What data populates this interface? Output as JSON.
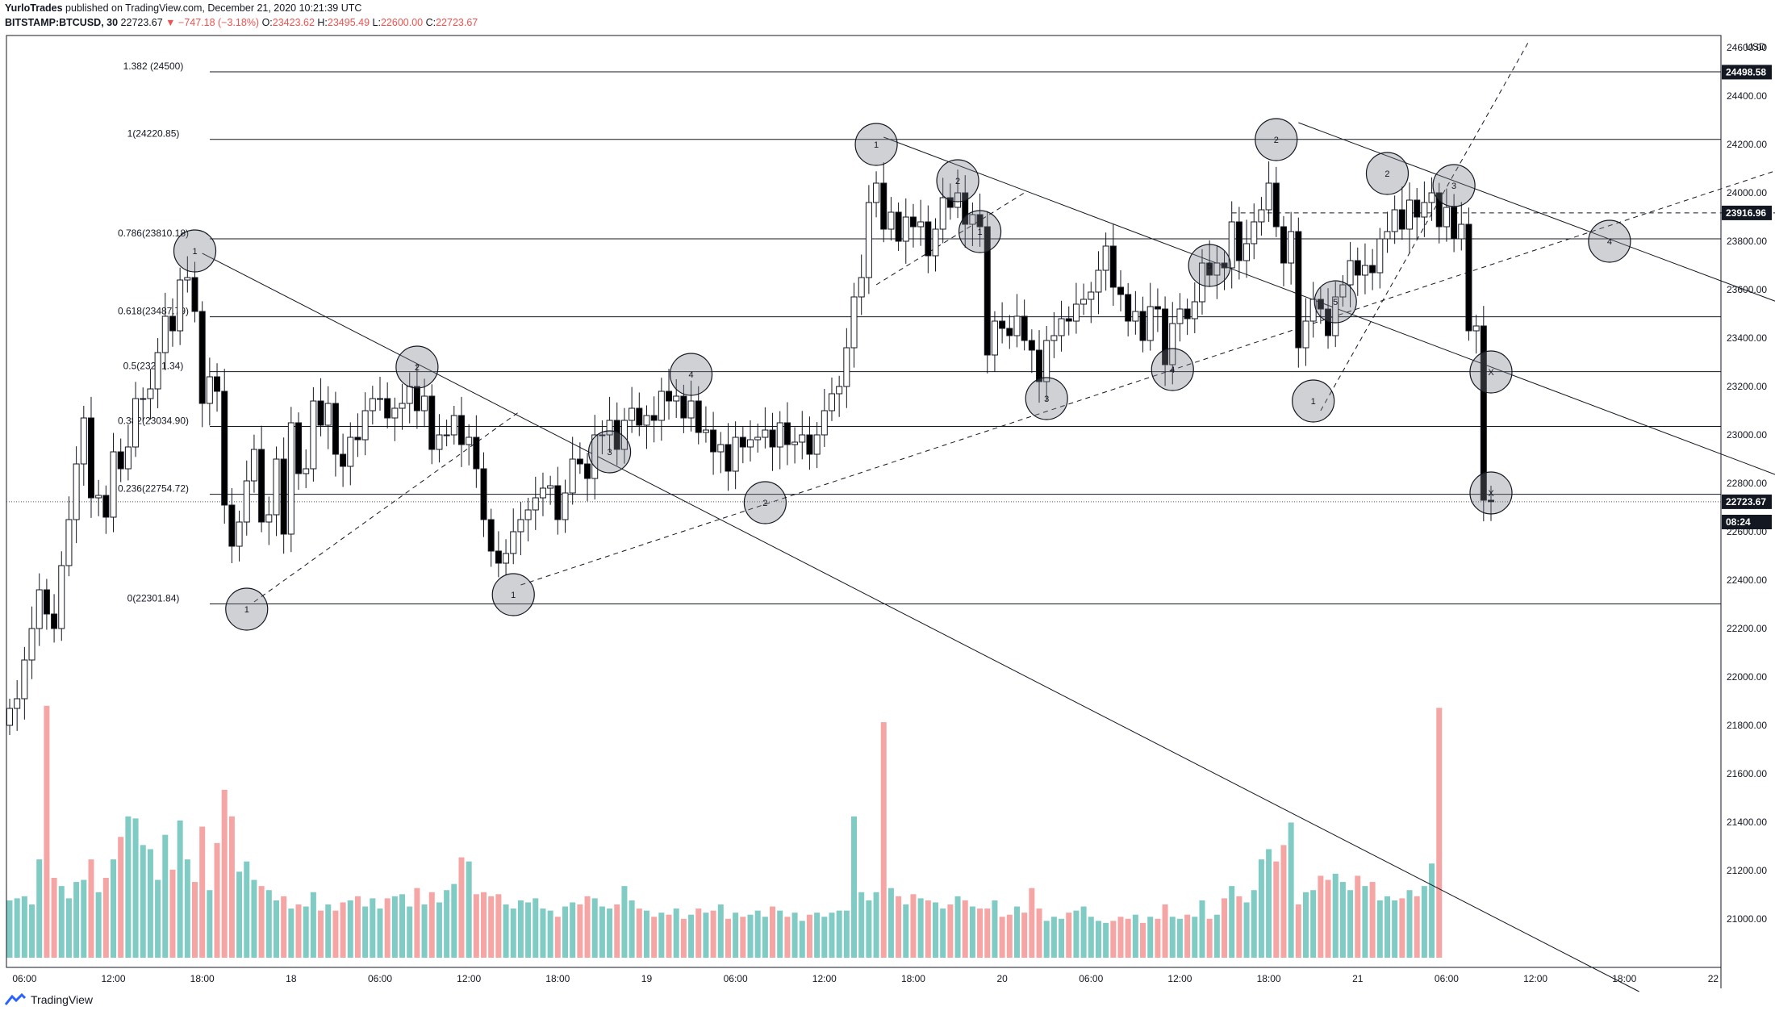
{
  "header": {
    "author": "YurloTrades",
    "published": "published on TradingView.com, December 21, 2020 10:21:39 UTC",
    "symbol": "BITSTAMP:BTCUSD, 30",
    "last": "22723.67",
    "change": "▼ −747.18 (−3.18%)",
    "o_label": "O:",
    "o": "23423.62",
    "h_label": "H:",
    "h": "23495.49",
    "l_label": "L:",
    "l": "22600.00",
    "c_label": "C:",
    "c": "22723.67"
  },
  "footer": {
    "brand": "TradingView"
  },
  "colors": {
    "up": "#26a69a",
    "down": "#000000",
    "vol_up": "#80cbc4",
    "vol_down": "#f6a5a5",
    "line": "#131722",
    "dots": "#e57373"
  },
  "chart_data": {
    "type": "candlestick",
    "currency": "USD",
    "y_axis": {
      "ticks": [
        24600,
        24400,
        24200,
        24000,
        23800,
        23600,
        23400,
        23200,
        23000,
        22800,
        22600,
        22400,
        22200,
        22000,
        21800,
        21600,
        21400,
        21200,
        21000
      ],
      "min": 20800,
      "max": 24650
    },
    "x_axis": {
      "ticks": [
        {
          "label": "06:00",
          "bar": 2
        },
        {
          "label": "12:00",
          "bar": 14
        },
        {
          "label": "18:00",
          "bar": 26
        },
        {
          "label": "18",
          "bar": 38
        },
        {
          "label": "06:00",
          "bar": 50
        },
        {
          "label": "12:00",
          "bar": 62
        },
        {
          "label": "18:00",
          "bar": 74
        },
        {
          "label": "19",
          "bar": 86
        },
        {
          "label": "06:00",
          "bar": 98
        },
        {
          "label": "12:00",
          "bar": 110
        },
        {
          "label": "18:00",
          "bar": 122
        },
        {
          "label": "20",
          "bar": 134
        },
        {
          "label": "06:00",
          "bar": 146
        },
        {
          "label": "12:00",
          "bar": 158
        },
        {
          "label": "18:00",
          "bar": 170
        },
        {
          "label": "21",
          "bar": 182
        },
        {
          "label": "06:00",
          "bar": 194
        },
        {
          "label": "12:00",
          "bar": 206
        },
        {
          "label": "18:00",
          "bar": 218
        },
        {
          "label": "22",
          "bar": 230
        },
        {
          "label": "06:00",
          "bar": 242
        },
        {
          "label": "12:00",
          "bar": 254
        },
        {
          "label": "18:00",
          "bar": 266
        }
      ],
      "bars_total": 275
    },
    "price_labels": [
      {
        "value": 24498.58,
        "text": "24498.58",
        "style": "dark"
      },
      {
        "value": 23916.96,
        "text": "23916.96",
        "style": "dark"
      },
      {
        "value": 22723.67,
        "text": "22723.67",
        "style": "dark"
      },
      {
        "value": 22640,
        "text": "08:24",
        "style": "dark"
      }
    ],
    "fib_levels": [
      {
        "value": 24500,
        "text": "1.382 (24500)"
      },
      {
        "value": 24220.85,
        "text": "1(24220.85)"
      },
      {
        "value": 23810.18,
        "text": "0.786(23810.18)"
      },
      {
        "value": 23487.79,
        "text": "0.618(23487.79)"
      },
      {
        "value": 23261.34,
        "text": "0.5(23261.34)"
      },
      {
        "value": 23034.9,
        "text": "0.382(23034.90)"
      },
      {
        "value": 22754.72,
        "text": "0.236(22754.72)"
      },
      {
        "value": 22301.84,
        "text": "0(22301.84)"
      }
    ],
    "current_price": 22723.67,
    "circles": [
      {
        "bar": 25,
        "value": 23760,
        "label": "1"
      },
      {
        "bar": 32,
        "value": 22280,
        "label": "1"
      },
      {
        "bar": 55,
        "value": 23280,
        "label": "2"
      },
      {
        "bar": 68,
        "value": 22340,
        "label": "1"
      },
      {
        "bar": 81,
        "value": 22930,
        "label": "3"
      },
      {
        "bar": 92,
        "value": 23250,
        "label": "4"
      },
      {
        "bar": 102,
        "value": 22720,
        "label": "2"
      },
      {
        "bar": 117,
        "value": 24200,
        "label": "1"
      },
      {
        "bar": 128,
        "value": 24050,
        "label": "2"
      },
      {
        "bar": 131,
        "value": 23840,
        "label": "1"
      },
      {
        "bar": 140,
        "value": 23150,
        "label": "3"
      },
      {
        "bar": 157,
        "value": 23270,
        "label": "4"
      },
      {
        "bar": 162,
        "value": 23700,
        "label": "5"
      },
      {
        "bar": 171,
        "value": 24220,
        "label": "2"
      },
      {
        "bar": 176,
        "value": 23140,
        "label": "1"
      },
      {
        "bar": 179,
        "value": 23550,
        "label": "5"
      },
      {
        "bar": 186,
        "value": 24080,
        "label": "2"
      },
      {
        "bar": 195,
        "value": 24030,
        "label": "3"
      },
      {
        "bar": 216,
        "value": 23800,
        "label": "4"
      },
      {
        "bar": 200,
        "value": 23260,
        "label": "X"
      },
      {
        "bar": 200,
        "value": 22760,
        "label": "X"
      }
    ],
    "trend_lines": [
      {
        "b1": 26,
        "v1": 23750,
        "b2": 220,
        "v2": 20700,
        "dash": false
      },
      {
        "b1": 118,
        "v1": 24230,
        "b2": 270,
        "v2": 22470,
        "dash": false
      },
      {
        "b1": 174,
        "v1": 24290,
        "b2": 270,
        "v2": 23190,
        "dash": false
      },
      {
        "b1": 33,
        "v1": 22310,
        "b2": 69,
        "v2": 23100,
        "dash": true
      },
      {
        "b1": 69,
        "v1": 22380,
        "b2": 270,
        "v2": 24410,
        "dash": true
      },
      {
        "b1": 117,
        "v1": 23620,
        "b2": 137,
        "v2": 24000,
        "dash": true
      },
      {
        "b1": 177,
        "v1": 23100,
        "b2": 205,
        "v2": 24620,
        "dash": true
      },
      {
        "b1": 165,
        "v1": 23916.96,
        "b2": 270,
        "v2": 23916.96,
        "dash": true
      }
    ],
    "series": {
      "open": [
        21800,
        21870,
        21910,
        22070,
        22200,
        22360,
        22260,
        22200,
        22460,
        22650,
        22880,
        23070,
        22740,
        22750,
        22660,
        22930,
        22860,
        22950,
        23150,
        23150,
        23190,
        23340,
        23490,
        23430,
        23640,
        23650,
        23510,
        23130,
        23240,
        23180,
        22710,
        22540,
        22640,
        22810,
        22940,
        22640,
        22670,
        22900,
        22590,
        23050,
        22840,
        22860,
        23140,
        23040,
        23130,
        22920,
        22870,
        22990,
        22980,
        23100,
        23150,
        23150,
        23070,
        23110,
        23130,
        23200,
        23100,
        23160,
        22940,
        23000,
        23000,
        23080,
        22960,
        22990,
        22860,
        22650,
        22520,
        22470,
        22510,
        22600,
        22650,
        22690,
        22740,
        22780,
        22790,
        22650,
        22760,
        22900,
        22880,
        22820,
        23000,
        23000,
        23060,
        22940,
        23060,
        23110,
        23040,
        23080,
        23060,
        23180,
        23140,
        23160,
        23070,
        23140,
        23010,
        23020,
        22930,
        22960,
        22850,
        22990,
        22950,
        22980,
        22990,
        23020,
        22950,
        23050,
        22960,
        22970,
        23000,
        22920,
        23000,
        23100,
        23170,
        23200,
        23360,
        23570,
        23650,
        23960,
        24040,
        23850,
        23920,
        23800,
        23900,
        23860,
        23880,
        23740,
        23850,
        23980,
        23940,
        24000,
        23870,
        23910,
        23860,
        23330,
        23470,
        23440,
        23410,
        23490,
        23390,
        23350,
        23220,
        23390,
        23410,
        23480,
        23470,
        23540,
        23560,
        23590,
        23680,
        23780,
        23610,
        23580,
        23470,
        23510,
        23390,
        23530,
        23520,
        23290,
        23460,
        23520,
        23480,
        23550,
        23710,
        23660,
        23710,
        23690,
        23880,
        23720,
        23790,
        23880,
        23930,
        24040,
        23860,
        23710,
        23840,
        23360,
        23470,
        23560,
        23520,
        23410,
        23570,
        23620,
        23720,
        23660,
        23700,
        23670,
        23810,
        23840,
        23930,
        23850,
        23970,
        23900,
        23960,
        24000,
        23860,
        23940,
        23810,
        23870,
        23430,
        23450,
        22730
      ],
      "close": [
        21870,
        21910,
        22070,
        22200,
        22360,
        22260,
        22200,
        22460,
        22650,
        22880,
        23070,
        22740,
        22750,
        22660,
        22930,
        22860,
        22950,
        23150,
        23150,
        23190,
        23340,
        23490,
        23430,
        23640,
        23650,
        23510,
        23130,
        23240,
        23180,
        22710,
        22540,
        22640,
        22810,
        22940,
        22640,
        22670,
        22900,
        22590,
        23050,
        22840,
        22860,
        23140,
        23040,
        23130,
        22920,
        22870,
        22990,
        22980,
        23100,
        23150,
        23150,
        23070,
        23110,
        23130,
        23200,
        23100,
        23160,
        22940,
        23000,
        23000,
        23080,
        22960,
        22990,
        22860,
        22650,
        22520,
        22470,
        22510,
        22600,
        22650,
        22690,
        22740,
        22780,
        22790,
        22650,
        22760,
        22900,
        22880,
        22820,
        23000,
        23000,
        23060,
        22940,
        23060,
        23110,
        23040,
        23080,
        23060,
        23180,
        23140,
        23160,
        23070,
        23140,
        23010,
        23020,
        22930,
        22960,
        22850,
        22990,
        22950,
        22980,
        22990,
        23020,
        22950,
        23050,
        22960,
        22970,
        23000,
        22920,
        23000,
        23100,
        23170,
        23200,
        23360,
        23570,
        23650,
        23960,
        24040,
        23850,
        23920,
        23800,
        23900,
        23860,
        23880,
        23740,
        23850,
        23980,
        23940,
        24000,
        23870,
        23910,
        23860,
        23330,
        23470,
        23440,
        23410,
        23490,
        23390,
        23350,
        23220,
        23390,
        23410,
        23480,
        23470,
        23540,
        23560,
        23590,
        23680,
        23780,
        23610,
        23580,
        23470,
        23510,
        23390,
        23530,
        23520,
        23290,
        23460,
        23520,
        23480,
        23550,
        23710,
        23660,
        23710,
        23690,
        23880,
        23720,
        23790,
        23880,
        23930,
        24040,
        23860,
        23710,
        23840,
        23360,
        23470,
        23560,
        23520,
        23410,
        23570,
        23620,
        23720,
        23660,
        23700,
        23670,
        23810,
        23840,
        23930,
        23850,
        23970,
        23900,
        23960,
        24000,
        23860,
        23940,
        23810,
        23870,
        23430,
        23450,
        22730,
        22724
      ]
    },
    "volume": [
      280,
      290,
      300,
      260,
      480,
      1230,
      390,
      350,
      290,
      370,
      380,
      480,
      320,
      390,
      480,
      590,
      690,
      680,
      550,
      530,
      380,
      600,
      430,
      670,
      480,
      370,
      640,
      330,
      560,
      820,
      690,
      420,
      470,
      380,
      350,
      330,
      280,
      300,
      240,
      260,
      250,
      320,
      230,
      260,
      230,
      270,
      280,
      300,
      250,
      290,
      240,
      290,
      300,
      310,
      250,
      340,
      260,
      320,
      270,
      330,
      360,
      490,
      470,
      310,
      320,
      300,
      310,
      260,
      240,
      280,
      270,
      290,
      240,
      230,
      200,
      250,
      270,
      260,
      300,
      290,
      250,
      240,
      260,
      350,
      280,
      240,
      230,
      200,
      220,
      210,
      240,
      190,
      210,
      240,
      220,
      230,
      260,
      190,
      220,
      200,
      210,
      230,
      200,
      250,
      230,
      200,
      220,
      180,
      210,
      220,
      200,
      220,
      230,
      230,
      690,
      320,
      280,
      320,
      1150,
      340,
      300,
      260,
      310,
      290,
      280,
      270,
      240,
      260,
      300,
      280,
      250,
      240,
      240,
      280,
      200,
      210,
      250,
      220,
      340,
      240,
      180,
      200,
      190,
      220,
      230,
      250,
      200,
      180,
      170,
      180,
      200,
      190,
      210,
      170,
      200,
      190,
      260,
      200,
      190,
      210,
      200,
      280,
      190,
      210,
      290,
      350,
      300,
      270,
      330,
      480,
      530,
      470,
      550,
      660,
      260,
      320,
      330,
      400,
      380,
      410,
      370,
      330,
      400,
      350,
      370,
      280,
      300,
      280,
      290,
      330,
      300,
      350,
      460,
      1220
    ],
    "volume_axis_max": 1300
  }
}
